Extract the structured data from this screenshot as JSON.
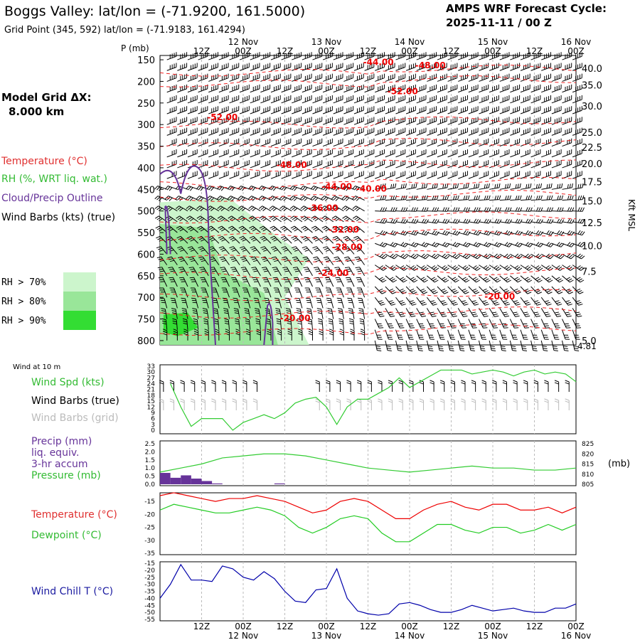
{
  "header": {
    "title": "Boggs Valley:  lat/lon = (-71.9200, 161.5000)",
    "grid_point": "Grid Point (345, 592) lat/lon = (-71.9183, 161.4294)",
    "cycle_label": "AMPS WRF Forecast Cycle:",
    "cycle_value": "2025-11-11 / 00  Z"
  },
  "time_axis": {
    "hour_labels": [
      "12Z",
      "00Z",
      "12Z",
      "00Z",
      "12Z",
      "00Z",
      "12Z",
      "00Z",
      "12Z",
      "00Z"
    ],
    "date_labels": [
      "12 Nov",
      "13 Nov",
      "14 Nov",
      "15 Nov",
      "16 Nov"
    ]
  },
  "upper_panel": {
    "pressure_axis_title": "P (mb)",
    "pressure_ticks": [
      "150",
      "200",
      "250",
      "300",
      "350",
      "400",
      "450",
      "500",
      "550",
      "600",
      "650",
      "700",
      "750",
      "800"
    ],
    "kft_ticks": [
      "40.0",
      "35.0",
      "30.0",
      "25.0",
      "22.5",
      "20.0",
      "17.5",
      "15.0",
      "12.5",
      "10.0",
      "7.5",
      "5.0"
    ],
    "kft_bottom": "4.81",
    "kft_title": "Kft MSL",
    "model_grid_label": "Model Grid ΔX:",
    "model_grid_value": "8.000 km",
    "legend": {
      "temperature": "Temperature (°C)",
      "rh": "RH (%, WRT liq. wat.)",
      "cloud": "Cloud/Precip Outline",
      "wind": "Wind Barbs (kts) (true)"
    },
    "rh_keys": [
      {
        "label": "RH > 70%",
        "color": "#ccf5cc"
      },
      {
        "label": "RH > 80%",
        "color": "#99e699"
      },
      {
        "label": "RH > 90%",
        "color": "#33dd33"
      }
    ],
    "isotherm_labels": [
      "-44.00",
      "-48.00",
      "-52.00",
      "-52.00",
      "-48.00",
      "-44.00",
      "-40.00",
      "-36.00",
      "-32.00",
      "-28.00",
      "-24.00",
      "-20.00",
      "-20.00"
    ]
  },
  "wind_panel": {
    "small_label": "Wind at 10 m",
    "labels": {
      "speed": "Wind Spd (kts)",
      "true": "Wind Barbs (true)",
      "grid": "Wind Barbs (grid)"
    },
    "ticks": [
      "33",
      "30",
      "27",
      "24",
      "21",
      "18",
      "15",
      "12",
      "9",
      "6",
      "3",
      "0"
    ]
  },
  "precip_panel": {
    "labels": [
      "Precip (mm)",
      "liq. equiv.",
      "3-hr accum",
      "Pressure (mb)"
    ],
    "left_ticks": [
      "2.5",
      "2.0",
      "1.5",
      "1.0",
      "0.5",
      "0.0"
    ],
    "right_ticks": [
      "825",
      "820",
      "815",
      "810",
      "805"
    ],
    "right_title": "(mb)"
  },
  "temp_panel": {
    "labels": {
      "temp": "Temperature (°C)",
      "dew": "Dewpoint (°C)"
    },
    "ticks": [
      "-15",
      "-20",
      "-25",
      "-30",
      "-35"
    ]
  },
  "chill_panel": {
    "label": "Wind Chill T (°C)",
    "ticks": [
      "-15",
      "-20",
      "-25",
      "-30",
      "-35",
      "-40",
      "-45",
      "-50",
      "-55"
    ]
  },
  "colors": {
    "temperature": "#ff0000",
    "rh_green": "#33cc33",
    "cloud": "#663399",
    "windchill": "#0000aa",
    "precip": "#663399",
    "grid": "#bbbbbb"
  },
  "chart_data": [
    {
      "type": "line",
      "name": "wind_speed_10m",
      "x_hours": [
        3,
        6,
        9,
        12,
        15,
        18,
        21,
        24,
        27,
        30,
        33,
        36,
        39,
        42,
        45,
        48,
        51,
        54,
        57,
        60,
        63,
        66,
        69,
        72,
        75,
        78,
        81,
        84,
        87,
        90,
        93,
        96,
        99,
        102,
        105,
        108,
        111,
        114,
        117,
        120
      ],
      "series": [
        {
          "values": [
            24,
            12,
            2,
            6,
            6,
            6,
            0,
            4,
            6,
            8,
            6,
            9,
            14,
            16,
            17,
            12,
            3,
            12,
            16,
            16,
            19,
            22,
            27,
            22,
            25,
            28,
            31,
            31,
            31,
            29,
            30,
            31,
            30,
            28,
            30,
            31,
            29,
            30,
            29,
            25
          ]
        }
      ],
      "ylim": [
        0,
        33
      ]
    },
    {
      "type": "bar",
      "name": "precip_3hr_mm",
      "x_hours": [
        3,
        6,
        9,
        12,
        15,
        18,
        21,
        24,
        27,
        30,
        33,
        36
      ],
      "values": [
        0.7,
        0.4,
        0.55,
        0.35,
        0.2,
        0.05,
        0,
        0,
        0,
        0,
        0,
        0.05
      ],
      "ylim": [
        0,
        2.5
      ]
    },
    {
      "type": "line",
      "name": "pressure_mb",
      "x_hours": [
        0,
        6,
        12,
        18,
        24,
        30,
        36,
        42,
        48,
        54,
        60,
        66,
        72,
        78,
        84,
        90,
        96,
        102,
        108,
        114,
        120
      ],
      "series": [
        {
          "values": [
            811,
            813,
            815,
            818,
            819,
            820,
            820,
            819,
            817,
            815,
            813,
            812,
            811,
            812,
            813,
            814,
            813,
            813,
            812,
            812,
            813
          ]
        }
      ],
      "ylim": [
        805,
        825
      ]
    },
    {
      "type": "line",
      "name": "temperature_dewpoint",
      "x_hours": [
        0,
        4,
        8,
        12,
        16,
        20,
        24,
        28,
        32,
        36,
        40,
        44,
        48,
        52,
        56,
        60,
        64,
        68,
        72,
        76,
        80,
        84,
        88,
        92,
        96,
        100,
        104,
        108,
        112,
        116,
        120
      ],
      "series": [
        {
          "values": [
            -15,
            -14,
            -15,
            -16,
            -17,
            -16,
            -16,
            -15,
            -16,
            -17,
            -19,
            -21,
            -20,
            -17,
            -16,
            -17,
            -20,
            -23,
            -23,
            -20,
            -18,
            -17,
            -19,
            -20,
            -18,
            -18,
            -20,
            -20,
            -19,
            -21,
            -19
          ]
        },
        {
          "values": [
            -20,
            -18,
            -19,
            -20,
            -21,
            -21,
            -20,
            -19,
            -20,
            -22,
            -26,
            -28,
            -26,
            -23,
            -22,
            -23,
            -28,
            -31,
            -31,
            -28,
            -25,
            -25,
            -27,
            -28,
            -26,
            -26,
            -28,
            -27,
            -25,
            -27,
            -25
          ]
        }
      ],
      "ylim": [
        -35,
        -15
      ]
    },
    {
      "type": "line",
      "name": "wind_chill",
      "x_hours": [
        0,
        3,
        6,
        9,
        12,
        15,
        18,
        21,
        24,
        27,
        30,
        33,
        36,
        39,
        42,
        45,
        48,
        51,
        54,
        57,
        60,
        63,
        66,
        69,
        72,
        75,
        78,
        81,
        84,
        87,
        90,
        93,
        96,
        99,
        102,
        105,
        108,
        111,
        114,
        117,
        120
      ],
      "series": [
        {
          "values": [
            -40,
            -30,
            -16,
            -27,
            -27,
            -28,
            -17,
            -19,
            -25,
            -27,
            -21,
            -26,
            -35,
            -42,
            -43,
            -34,
            -33,
            -19,
            -40,
            -49,
            -51,
            -52,
            -51,
            -44,
            -43,
            -45,
            -48,
            -50,
            -50,
            -48,
            -45,
            -47,
            -49,
            -48,
            -47,
            -49,
            -50,
            -50,
            -47,
            -47,
            -44
          ]
        }
      ],
      "ylim": [
        -55,
        -15
      ]
    }
  ]
}
